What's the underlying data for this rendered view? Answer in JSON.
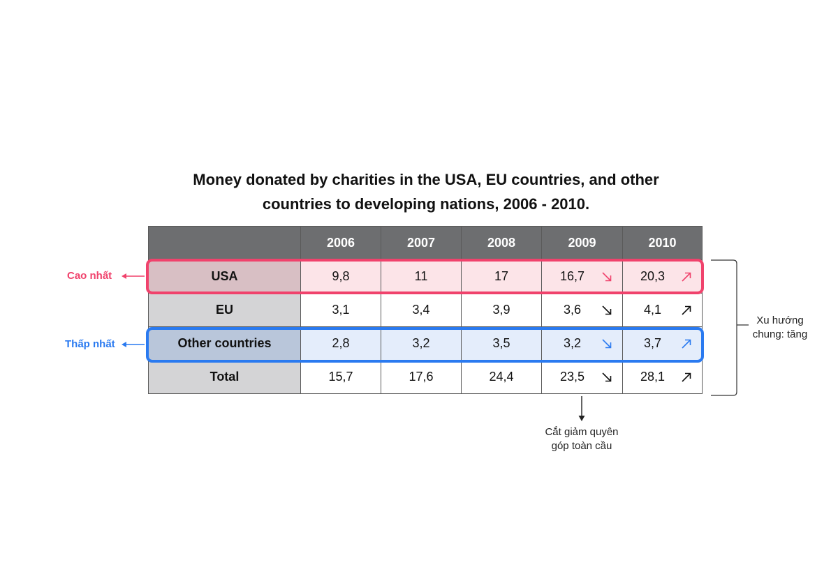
{
  "title": {
    "line1": "Money donated by charities in the USA, EU countries, and other",
    "line2": "countries to developing nations, 2006 - 2010."
  },
  "colors": {
    "header_bg": "#6d6e70",
    "row_header_bg": "#d4d4d6",
    "highlight_high": "#f0426c",
    "highlight_low": "#2a7af0"
  },
  "annotations": {
    "highest": "Cao nhất",
    "lowest": "Thấp nhất",
    "trend_line1": "Xu hướng",
    "trend_line2": "chung: tăng",
    "cut_line1": "Cắt giảm quyên",
    "cut_line2": "góp toàn cầu"
  },
  "chart_data": {
    "type": "table",
    "columns": [
      "",
      "2006",
      "2007",
      "2008",
      "2009",
      "2010"
    ],
    "rows": [
      {
        "label": "USA",
        "values": [
          "9,8",
          "11",
          "17",
          "16,7",
          "20,3"
        ],
        "trend_2009": "down",
        "trend_2010": "up",
        "highlight": "highest"
      },
      {
        "label": "EU",
        "values": [
          "3,1",
          "3,4",
          "3,9",
          "3,6",
          "4,1"
        ],
        "trend_2009": "down",
        "trend_2010": "up"
      },
      {
        "label": "Other countries",
        "values": [
          "2,8",
          "3,2",
          "3,5",
          "3,2",
          "3,7"
        ],
        "trend_2009": "down",
        "trend_2010": "up",
        "highlight": "lowest"
      },
      {
        "label": "Total",
        "values": [
          "15,7",
          "17,6",
          "24,4",
          "23,5",
          "28,1"
        ],
        "trend_2009": "down",
        "trend_2010": "up"
      }
    ]
  }
}
